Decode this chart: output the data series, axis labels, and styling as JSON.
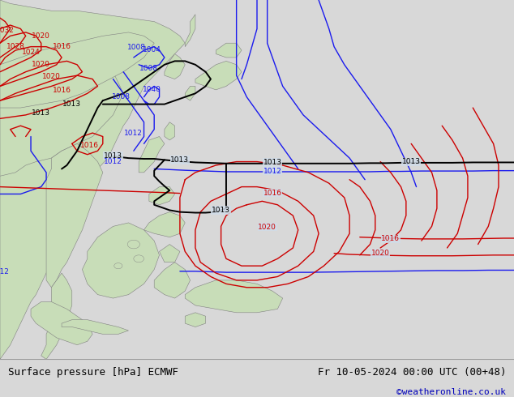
{
  "title_left": "Surface pressure [hPa] ECMWF",
  "title_right": "Fr 10-05-2024 00:00 UTC (00+48)",
  "watermark": "©weatheronline.co.uk",
  "ocean_color": "#d0dce8",
  "land_color": "#c8ddb8",
  "fig_bg": "#d0dce8",
  "bottom_bg": "#d8d8d8",
  "border_color": "#808080",
  "watermark_color": "#0000bb",
  "black_lw": 1.4,
  "blue_lw": 1.0,
  "red_lw": 1.0,
  "label_fontsize": 6.5
}
